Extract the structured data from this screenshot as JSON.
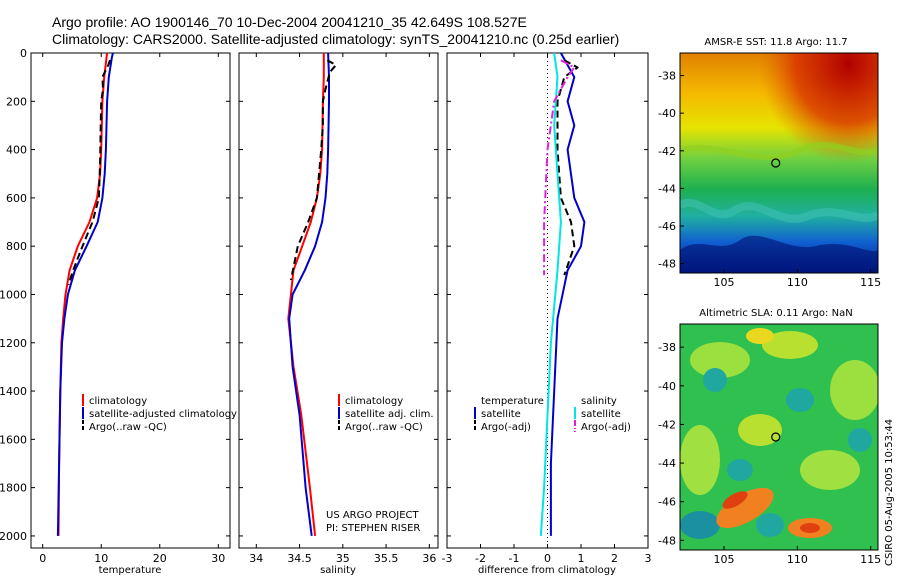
{
  "header": {
    "line1": "Argo profile: AO 1900146_70 10-Dec-2004 20041210_35 42.649S 108.527E",
    "line2": "Climatology: CARS2000. Satellite-adjusted climatology: synTS_20041210.nc (0.25d earlier)"
  },
  "credit": {
    "project": "US ARGO PROJECT",
    "pi": "PI: STEPHEN RISER",
    "stamp": "CSIRO 05-Aug-2005 10:53:44"
  },
  "colors": {
    "climatology": "#ff0000",
    "satellite": "#0000cc",
    "argo": "#000000",
    "satellite_diff": "#00e5e5",
    "argo_adj_diff": "#e020e0"
  },
  "chart_data": [
    {
      "type": "line",
      "xlabel": "temperature",
      "ylabel": "",
      "xlim": [
        -2,
        32
      ],
      "ylim": [
        2050,
        0
      ],
      "x_ticks": [
        0,
        10,
        20,
        30
      ],
      "y_ticks": [
        0,
        200,
        400,
        600,
        800,
        1000,
        1200,
        1400,
        1600,
        1800,
        2000
      ],
      "legend": [
        "climatology",
        "satellite-adjusted climatology",
        "Argo(..raw -QC)"
      ],
      "series": [
        {
          "name": "climatology",
          "style": "solid",
          "color": "#ff0000",
          "x": [
            11.0,
            10.9,
            10.5,
            10.2,
            10.1,
            10.0,
            9.8,
            9.3,
            8.0,
            6.0,
            4.6,
            3.9,
            3.5,
            3.2,
            3.0,
            2.8,
            2.7
          ],
          "y": [
            0,
            20,
            100,
            200,
            300,
            400,
            500,
            600,
            700,
            800,
            900,
            1000,
            1100,
            1200,
            1400,
            1700,
            2000
          ]
        },
        {
          "name": "satellite-adjusted climatology",
          "style": "solid",
          "color": "#0000cc",
          "x": [
            12.0,
            11.8,
            11.3,
            11.0,
            10.9,
            10.8,
            10.6,
            10.2,
            9.4,
            7.5,
            5.5,
            4.3,
            3.7,
            3.3,
            3.0,
            2.8,
            2.6
          ],
          "y": [
            0,
            20,
            100,
            200,
            300,
            400,
            500,
            600,
            700,
            800,
            900,
            1000,
            1100,
            1200,
            1400,
            1700,
            2000
          ]
        },
        {
          "name": "Argo(..raw -QC)",
          "style": "dashed",
          "color": "#000000",
          "x": [
            11.5,
            11.2,
            10.2,
            10.3,
            10.0,
            9.9,
            9.8,
            9.6,
            8.5,
            6.8,
            5.2,
            4.4
          ],
          "y": [
            30,
            50,
            100,
            150,
            200,
            300,
            450,
            600,
            700,
            800,
            900,
            960
          ]
        }
      ]
    },
    {
      "type": "line",
      "xlabel": "salinity",
      "ylabel": "",
      "xlim": [
        33.8,
        36.1
      ],
      "ylim": [
        2050,
        0
      ],
      "x_ticks": [
        34,
        34.5,
        35,
        35.5,
        36
      ],
      "legend": [
        "climatology",
        "satellite adj. clim.",
        "Argo(..raw -QC)"
      ],
      "series": [
        {
          "name": "climatology",
          "style": "solid",
          "color": "#ff0000",
          "x": [
            34.78,
            34.78,
            34.77,
            34.76,
            34.74,
            34.7,
            34.63,
            34.53,
            34.43,
            34.37,
            34.43,
            34.52,
            34.62,
            34.68
          ],
          "y": [
            0,
            100,
            200,
            400,
            500,
            600,
            700,
            800,
            900,
            1100,
            1300,
            1500,
            1800,
            2000
          ]
        },
        {
          "name": "satellite adj. clim.",
          "style": "solid",
          "color": "#0000cc",
          "x": [
            34.83,
            34.84,
            34.84,
            34.83,
            34.82,
            34.8,
            34.76,
            34.68,
            34.56,
            34.42,
            34.38,
            34.42,
            34.5,
            34.57,
            34.64
          ],
          "y": [
            0,
            100,
            200,
            400,
            500,
            600,
            700,
            800,
            900,
            1000,
            1100,
            1300,
            1500,
            1800,
            2000
          ]
        },
        {
          "name": "Argo(..raw -QC)",
          "style": "dashed",
          "color": "#000000",
          "x": [
            34.82,
            34.92,
            34.85,
            34.8,
            34.77,
            34.77,
            34.75,
            34.7,
            34.6,
            34.48,
            34.4
          ],
          "y": [
            30,
            50,
            80,
            150,
            200,
            300,
            400,
            600,
            700,
            800,
            940
          ]
        }
      ]
    },
    {
      "type": "line",
      "xlabel": "difference from climatology",
      "ylabel": "",
      "xlim": [
        -3,
        3
      ],
      "ylim": [
        2050,
        0
      ],
      "x_ticks": [
        -3,
        -2,
        -1,
        0,
        1,
        2,
        3
      ],
      "legend": [
        "temperature",
        "satellite",
        "Argo(-adj)",
        "salinity",
        "satellite",
        "Argo(-adj)"
      ],
      "series": [
        {
          "name": "temperature satellite",
          "style": "solid",
          "color": "#0000cc",
          "x": [
            0.4,
            0.8,
            0.6,
            0.8,
            0.6,
            0.8,
            1.1,
            1.0,
            0.6,
            0.3,
            0.2,
            0.1,
            0.1
          ],
          "y": [
            0,
            100,
            200,
            300,
            400,
            600,
            700,
            800,
            900,
            1100,
            1400,
            1700,
            2000
          ]
        },
        {
          "name": "temperature Argo(-adj)",
          "style": "dashed",
          "color": "#000000",
          "x": [
            0.5,
            0.9,
            0.5,
            0.3,
            0.3,
            0.4,
            0.7,
            0.8,
            0.5
          ],
          "y": [
            30,
            60,
            100,
            200,
            400,
            600,
            700,
            800,
            920
          ]
        },
        {
          "name": "salinity satellite",
          "style": "solid",
          "color": "#00e5e5",
          "x": [
            0.2,
            0.3,
            0.2,
            0.3,
            0.4,
            0.3,
            0.1,
            0.0,
            -0.1,
            -0.2
          ],
          "y": [
            0,
            100,
            300,
            500,
            700,
            900,
            1200,
            1500,
            1800,
            2000
          ]
        },
        {
          "name": "salinity Argo(-adj)",
          "style": "dashdot",
          "color": "#e020e0",
          "x": [
            0.4,
            0.8,
            0.6,
            0.2,
            0.0,
            -0.1,
            -0.1
          ],
          "y": [
            30,
            60,
            100,
            200,
            400,
            700,
            920
          ]
        }
      ]
    },
    {
      "type": "heatmap",
      "title": "AMSR-E SST: 11.8 Argo: 11.7",
      "xlim": [
        102,
        115.5
      ],
      "ylim": [
        -48.5,
        -36.8
      ],
      "x_ticks": [
        105,
        110,
        115
      ],
      "y_ticks": [
        -38,
        -40,
        -42,
        -44,
        -46,
        -48
      ],
      "marker": {
        "lon": 108.527,
        "lat": -42.649
      }
    },
    {
      "type": "heatmap",
      "title": "Altimetric SLA: 0.11 Argo: NaN",
      "xlim": [
        102,
        115.5
      ],
      "ylim": [
        -48.5,
        -36.8
      ],
      "x_ticks": [
        105,
        110,
        115
      ],
      "y_ticks": [
        -38,
        -40,
        -42,
        -44,
        -46,
        -48
      ],
      "marker": {
        "lon": 108.527,
        "lat": -42.649
      }
    }
  ]
}
